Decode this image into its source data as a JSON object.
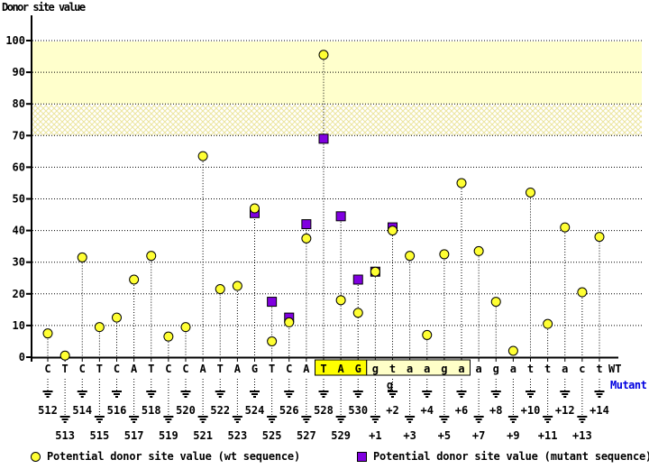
{
  "title": "Donor site value",
  "axis": {
    "wt_row_label": "WT",
    "mutant_row_label": "Mutant",
    "yticks": [
      0,
      10,
      20,
      30,
      40,
      50,
      60,
      70,
      80,
      90,
      100
    ]
  },
  "legend": {
    "wt": "Potential donor site value (wt sequence)",
    "mutant": "Potential donor site value (mutant sequence)"
  },
  "colors": {
    "wt_point": "#ffff33",
    "mutant_point": "#8000e0",
    "band_solid": "#ffffcc",
    "hatch_line": "#ece59e",
    "highlight_bright": "#ffff00",
    "highlight_pale": "#ffffc8",
    "mutant_text": "#0000e0"
  },
  "chart_data": {
    "type": "scatter",
    "title": "Donor site value",
    "ylabel": "Donor site value",
    "ylim": [
      0,
      110
    ],
    "yticks": [
      0,
      10,
      20,
      30,
      40,
      50,
      60,
      70,
      80,
      90,
      100
    ],
    "grid": "dotted horizontal every 10",
    "legend_position": "bottom",
    "threshold_bands": [
      {
        "from": 80,
        "to": 100,
        "style": "solid"
      },
      {
        "from": 70,
        "to": 80,
        "style": "hatch"
      }
    ],
    "series_names": [
      "wt sequence",
      "mutant sequence"
    ],
    "positions": [
      {
        "label": "512",
        "base": "C",
        "wt": 7.5,
        "mut": null
      },
      {
        "label": "513",
        "base": "T",
        "wt": 0.5,
        "mut": null
      },
      {
        "label": "514",
        "base": "C",
        "wt": 31.5,
        "mut": null
      },
      {
        "label": "515",
        "base": "T",
        "wt": 9.5,
        "mut": null
      },
      {
        "label": "516",
        "base": "C",
        "wt": 12.5,
        "mut": null
      },
      {
        "label": "517",
        "base": "A",
        "wt": 24.5,
        "mut": null
      },
      {
        "label": "518",
        "base": "T",
        "wt": 32,
        "mut": null
      },
      {
        "label": "519",
        "base": "C",
        "wt": 6.5,
        "mut": null
      },
      {
        "label": "520",
        "base": "C",
        "wt": 9.5,
        "mut": null
      },
      {
        "label": "521",
        "base": "A",
        "wt": 63.5,
        "mut": null
      },
      {
        "label": "522",
        "base": "T",
        "wt": 21.5,
        "mut": null
      },
      {
        "label": "523",
        "base": "A",
        "wt": 22.5,
        "mut": null
      },
      {
        "label": "524",
        "base": "G",
        "wt": 47,
        "mut": 45.5
      },
      {
        "label": "525",
        "base": "T",
        "wt": 5,
        "mut": 17.5
      },
      {
        "label": "526",
        "base": "C",
        "wt": 11,
        "mut": 12.5
      },
      {
        "label": "527",
        "base": "A",
        "wt": 37.5,
        "mut": 42
      },
      {
        "label": "528",
        "base": "T",
        "wt": 95.5,
        "mut": 69
      },
      {
        "label": "529",
        "base": "A",
        "wt": 18,
        "mut": 44.5
      },
      {
        "label": "530",
        "base": "G",
        "wt": 14,
        "mut": 24.5
      },
      {
        "label": "+1",
        "base": "g",
        "wt": 27,
        "mut": 27
      },
      {
        "label": "+2",
        "base": "t",
        "wt": 40,
        "mut": 41
      },
      {
        "label": "+3",
        "base": "a",
        "wt": 32,
        "mut": null
      },
      {
        "label": "+4",
        "base": "a",
        "wt": 7,
        "mut": null
      },
      {
        "label": "+5",
        "base": "g",
        "wt": 32.5,
        "mut": null
      },
      {
        "label": "+6",
        "base": "a",
        "wt": 55,
        "mut": null
      },
      {
        "label": "+7",
        "base": "a",
        "wt": 33.5,
        "mut": null
      },
      {
        "label": "+8",
        "base": "g",
        "wt": 17.5,
        "mut": null
      },
      {
        "label": "+9",
        "base": "a",
        "wt": 2,
        "mut": null
      },
      {
        "label": "+10",
        "base": "t",
        "wt": 52,
        "mut": null
      },
      {
        "label": "+11",
        "base": "t",
        "wt": 10.5,
        "mut": null
      },
      {
        "label": "+12",
        "base": "a",
        "wt": 41,
        "mut": null
      },
      {
        "label": "+13",
        "base": "c",
        "wt": 20.5,
        "mut": null
      },
      {
        "label": "+14",
        "base": "t",
        "wt": 38,
        "mut": null
      }
    ],
    "mutation": {
      "position_label": "+2",
      "wt_base": "t",
      "mutant_base": "g",
      "index": 20
    },
    "highlight": {
      "bright_bases": "TAG",
      "bright_start": 16,
      "bright_end": 18,
      "pale_bases": "gtaaga",
      "pale_start": 19,
      "pale_end": 24
    }
  }
}
